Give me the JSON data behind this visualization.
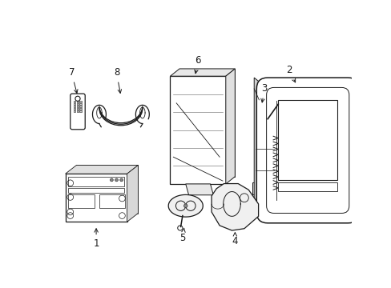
{
  "background_color": "#ffffff",
  "line_color": "#1a1a1a",
  "fig_w": 4.89,
  "fig_h": 3.6,
  "dpi": 100
}
